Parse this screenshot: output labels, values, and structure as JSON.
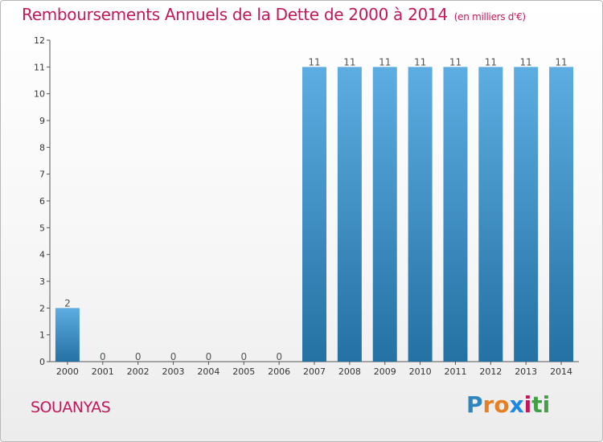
{
  "header": {
    "title": "Remboursements Annuels de la Dette de 2000 à 2014",
    "unit": "(en milliers d'€)"
  },
  "footer": {
    "commune": "SOUANYAS",
    "logo": {
      "letters": [
        "P",
        "r",
        "o",
        "x",
        "i",
        "t",
        "i"
      ],
      "colors": [
        "#2e86c1",
        "#e67e22",
        "#e67e22",
        "#1e88e5",
        "#c2185b",
        "#43a047",
        "#43a047"
      ]
    }
  },
  "chart_data": {
    "type": "bar",
    "categories": [
      "2000",
      "2001",
      "2002",
      "2003",
      "2004",
      "2005",
      "2006",
      "2007",
      "2008",
      "2009",
      "2010",
      "2011",
      "2012",
      "2013",
      "2014"
    ],
    "values": [
      2,
      0,
      0,
      0,
      0,
      0,
      0,
      11,
      11,
      11,
      11,
      11,
      11,
      11,
      11
    ],
    "data_labels": [
      "2",
      "0",
      "0",
      "0",
      "0",
      "0",
      "0",
      "11",
      "11",
      "11",
      "11",
      "11",
      "11",
      "11",
      "11"
    ],
    "y_ticks": [
      "0",
      "1",
      "2",
      "3",
      "4",
      "5",
      "6",
      "7",
      "8",
      "9",
      "10",
      "11",
      "12"
    ],
    "ylim": [
      0,
      12
    ],
    "grid": false,
    "legend": "none",
    "bar_color_top": "#5dade2",
    "bar_color_bottom": "#2471a3"
  }
}
